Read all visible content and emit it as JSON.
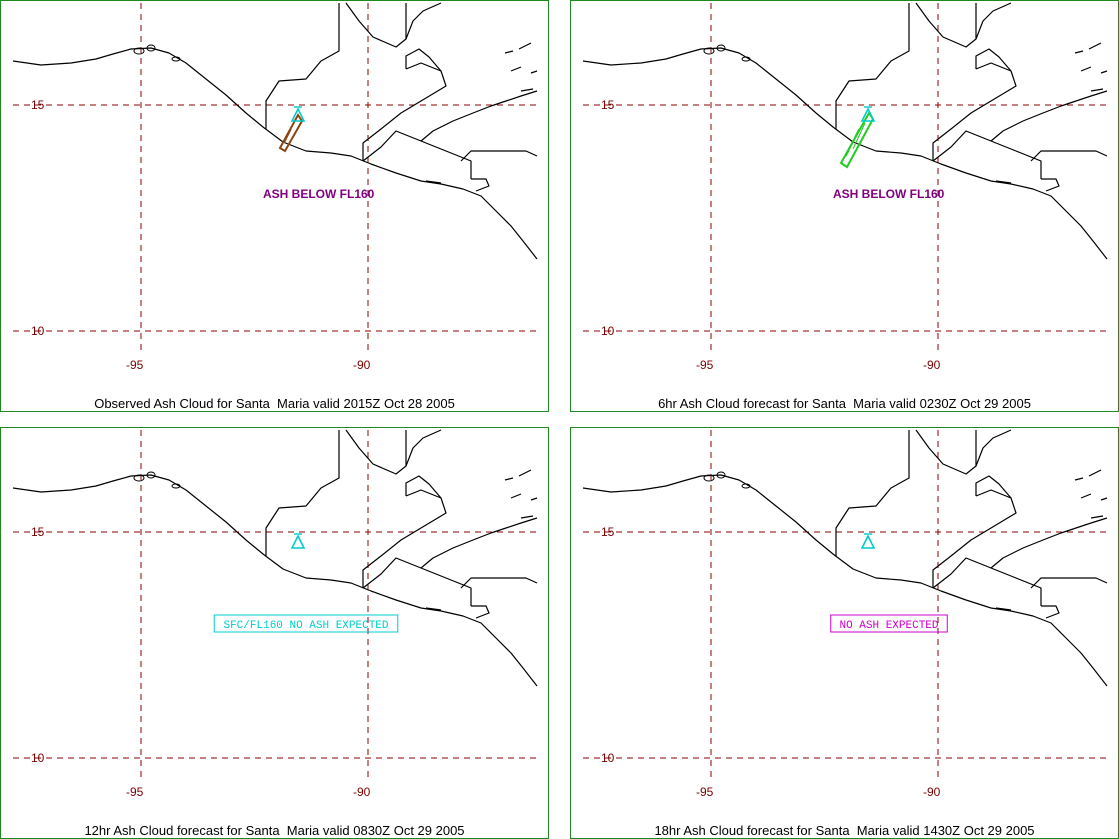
{
  "panels": [
    {
      "caption": "Observed Ash Cloud for Santa  Maria valid 2015Z Oct 28 2005",
      "note": "ASH BELOW FL160",
      "note_style": "plain",
      "note_color": "#800080",
      "cloud_color": "#8b4513"
    },
    {
      "caption": "6hr Ash Cloud forecast for Santa  Maria valid 0230Z Oct 29 2005",
      "note": "ASH BELOW FL160",
      "note_style": "plain",
      "note_color": "#800080",
      "cloud_color": "#22cc22"
    },
    {
      "caption": "12hr Ash Cloud forecast for Santa  Maria valid 0830Z Oct 29 2005",
      "note": "SFC/FL160 NO ASH EXPECTED",
      "note_style": "boxed",
      "note_color": "#00cccc",
      "cloud_color": ""
    },
    {
      "caption": "18hr Ash Cloud forecast for Santa  Maria valid 1430Z Oct 29 2005",
      "note": "NO ASH EXPECTED",
      "note_style": "boxed",
      "note_color": "#cc00cc",
      "cloud_color": ""
    }
  ],
  "axes": {
    "lat_labels": [
      "15",
      "10"
    ],
    "lon_labels": [
      "-95",
      "-90"
    ]
  },
  "icons": {
    "volcano": "volcano-triangle-icon"
  },
  "colors": {
    "border": "#1e8a1e",
    "grid": "#8b0000",
    "volcano": "#00cccc"
  }
}
